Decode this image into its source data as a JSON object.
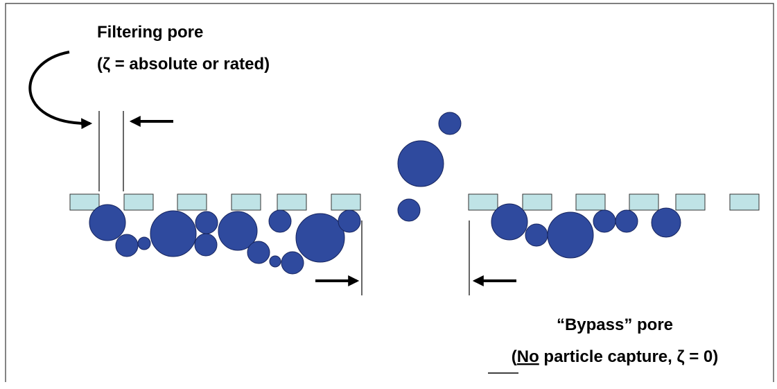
{
  "filtering_pore": {
    "title": "Filtering pore",
    "subtitle": "(ζ = absolute or rated)"
  },
  "bypass_pore": {
    "title": "“Bypass” pore",
    "subtitle_open": "(",
    "subtitle_emphasis": "No",
    "subtitle_rest": " particle capture, ζ = 0)"
  }
}
